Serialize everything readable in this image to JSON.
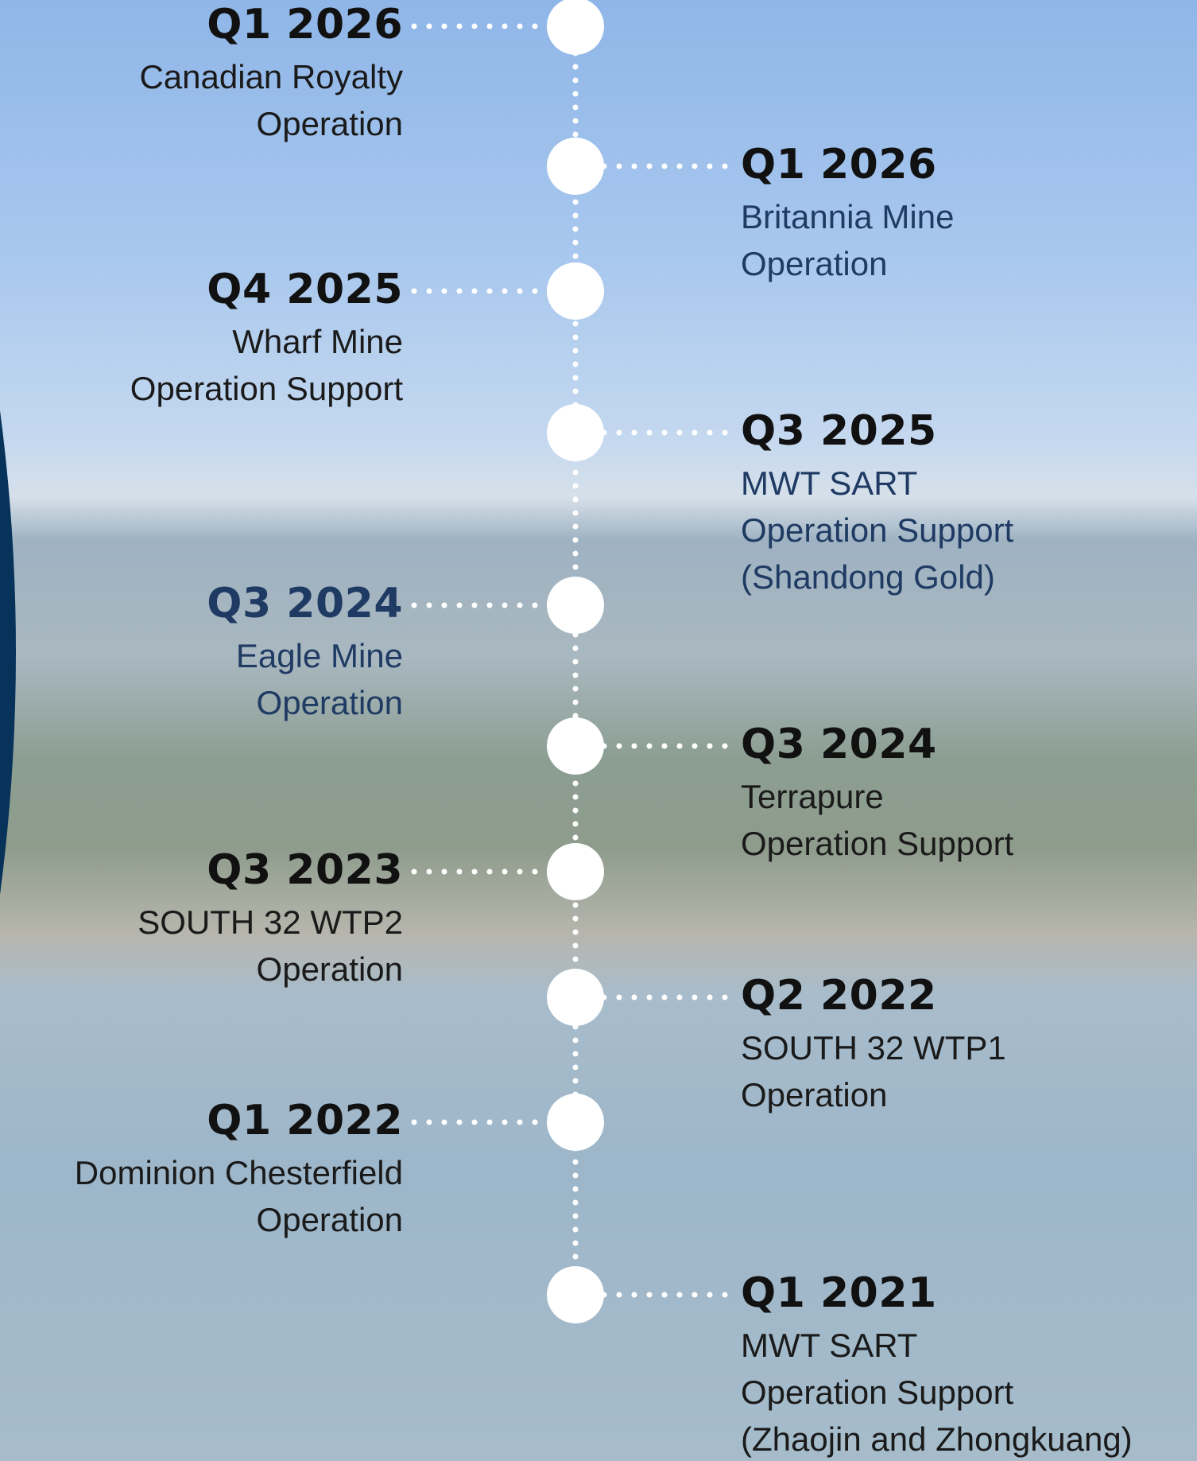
{
  "timeline": {
    "items": [
      {
        "quarter": "Q1 2026",
        "lines": [
          "Canadian Royalty",
          "Operation"
        ]
      },
      {
        "quarter": "Q1 2026",
        "lines": [
          "Britannia Mine",
          "Operation"
        ]
      },
      {
        "quarter": "Q4 2025",
        "lines": [
          "Wharf Mine",
          "Operation Support"
        ]
      },
      {
        "quarter": "Q3 2025",
        "lines": [
          "MWT SART",
          "Operation Support",
          "(Shandong Gold)"
        ]
      },
      {
        "quarter": "Q3 2024",
        "lines": [
          "Eagle Mine",
          "Operation"
        ]
      },
      {
        "quarter": "Q3 2024",
        "lines": [
          "Terrapure",
          "Operation Support"
        ]
      },
      {
        "quarter": "Q3 2023",
        "lines": [
          "SOUTH 32 WTP2",
          "Operation"
        ]
      },
      {
        "quarter": "Q2 2022",
        "lines": [
          "SOUTH 32 WTP1",
          "Operation"
        ]
      },
      {
        "quarter": "Q1 2022",
        "lines": [
          "Dominion Chesterfield",
          "Operation"
        ]
      },
      {
        "quarter": "Q1 2021",
        "lines": [
          "MWT SART",
          "Operation Support",
          "(Zhaojin and Zhongkuang)"
        ]
      }
    ]
  }
}
